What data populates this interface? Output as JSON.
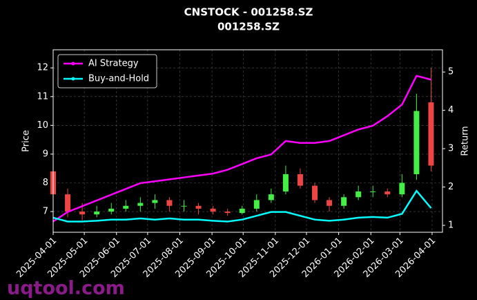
{
  "chart_data": {
    "type": "candlestick",
    "title": "CNSTOCK - 001258.SZ",
    "subtitle": "001258.SZ",
    "ylabel": "Price",
    "y2label": "Return",
    "watermark": "uqtool.com",
    "x": [
      "2025-04-01",
      "2025-04-15",
      "2025-04-29",
      "2025-05-13",
      "2025-05-27",
      "2025-06-10",
      "2025-06-24",
      "2025-07-08",
      "2025-07-22",
      "2025-08-05",
      "2025-08-19",
      "2025-09-02",
      "2025-09-16",
      "2025-09-30",
      "2025-10-14",
      "2025-10-28",
      "2025-11-11",
      "2025-11-25",
      "2025-12-09",
      "2025-12-23",
      "2026-01-06",
      "2026-01-20",
      "2026-02-03",
      "2026-02-17",
      "2026-03-03",
      "2026-03-17",
      "2026-03-31"
    ],
    "open": [
      8.4,
      7.6,
      7.0,
      6.9,
      7.0,
      7.1,
      7.2,
      7.3,
      7.4,
      7.2,
      7.2,
      7.1,
      7.0,
      6.95,
      7.1,
      7.4,
      7.7,
      8.3,
      7.9,
      7.4,
      7.2,
      7.5,
      7.7,
      7.7,
      7.6,
      8.3,
      10.8
    ],
    "high": [
      9.1,
      7.8,
      7.3,
      7.2,
      7.3,
      7.4,
      7.5,
      7.6,
      7.5,
      7.4,
      7.3,
      7.2,
      7.1,
      7.2,
      7.6,
      7.8,
      8.6,
      8.5,
      8.0,
      7.5,
      7.6,
      7.9,
      7.9,
      7.8,
      8.3,
      11.1,
      12.0
    ],
    "low": [
      7.4,
      6.8,
      6.7,
      6.8,
      6.9,
      7.0,
      7.0,
      7.1,
      7.0,
      7.0,
      6.9,
      6.9,
      6.85,
      6.9,
      7.0,
      7.3,
      7.6,
      7.8,
      7.3,
      7.0,
      7.1,
      7.4,
      7.5,
      7.5,
      7.5,
      8.1,
      8.4
    ],
    "close": [
      7.6,
      7.0,
      6.9,
      7.0,
      7.1,
      7.2,
      7.3,
      7.4,
      7.2,
      7.2,
      7.1,
      7.0,
      6.95,
      7.1,
      7.4,
      7.6,
      8.3,
      7.9,
      7.4,
      7.2,
      7.5,
      7.7,
      7.7,
      7.6,
      8.0,
      10.5,
      8.6
    ],
    "up_color": "#44ee44",
    "down_color": "#ee4444",
    "series": [
      {
        "name": "AI Strategy",
        "color": "#ff00ff",
        "axis": "y2",
        "values": [
          1.1,
          1.35,
          1.5,
          1.65,
          1.8,
          1.95,
          2.1,
          2.15,
          2.2,
          2.25,
          2.3,
          2.35,
          2.45,
          2.6,
          2.75,
          2.85,
          3.2,
          3.15,
          3.15,
          3.2,
          3.35,
          3.5,
          3.6,
          3.85,
          4.15,
          4.9,
          4.8
        ]
      },
      {
        "name": "Buy-and-Hold",
        "color": "#00ffff",
        "axis": "y2",
        "values": [
          1.2,
          1.1,
          1.1,
          1.12,
          1.15,
          1.15,
          1.18,
          1.15,
          1.18,
          1.15,
          1.15,
          1.12,
          1.1,
          1.15,
          1.25,
          1.35,
          1.35,
          1.25,
          1.15,
          1.12,
          1.15,
          1.2,
          1.22,
          1.2,
          1.3,
          1.9,
          1.45
        ]
      }
    ],
    "xlim": [
      "2025-04-01",
      "2026-04-11"
    ],
    "xticks": [
      "2025-04-01",
      "2025-05-01",
      "2025-06-01",
      "2025-07-01",
      "2025-08-01",
      "2025-09-01",
      "2025-10-01",
      "2025-11-01",
      "2025-12-01",
      "2026-01-01",
      "2026-02-01",
      "2026-03-01",
      "2026-04-01"
    ],
    "ylim": [
      6.28,
      12.63
    ],
    "yticks": [
      7,
      8,
      9,
      10,
      11,
      12
    ],
    "y2lim": [
      0.82,
      5.58
    ],
    "y2ticks": [
      1,
      2,
      3,
      4,
      5
    ],
    "grid": true,
    "legend": "upper left"
  }
}
